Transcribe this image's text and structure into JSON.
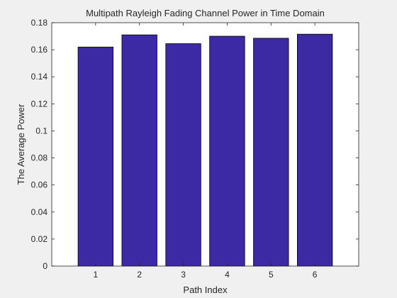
{
  "chart_data": {
    "type": "bar",
    "title": "Multipath Rayleigh Fading Channel Power in Time Domain",
    "xlabel": "Path Index",
    "ylabel": "The Average Power",
    "categories": [
      "1",
      "2",
      "3",
      "4",
      "5",
      "6"
    ],
    "values": [
      0.162,
      0.171,
      0.1645,
      0.17,
      0.1685,
      0.1715
    ],
    "xlim": [
      0,
      7
    ],
    "ylim": [
      0,
      0.18
    ],
    "yticks": [
      0,
      0.02,
      0.04,
      0.06,
      0.08,
      0.1,
      0.12,
      0.14,
      0.16,
      0.18
    ],
    "ytick_labels": [
      "0",
      "0.02",
      "0.04",
      "0.06",
      "0.08",
      "0.1",
      "0.12",
      "0.14",
      "0.16",
      "0.18"
    ],
    "grid": false,
    "bar_color": "#3b2aa3",
    "bar_edge_color": "#000000"
  }
}
